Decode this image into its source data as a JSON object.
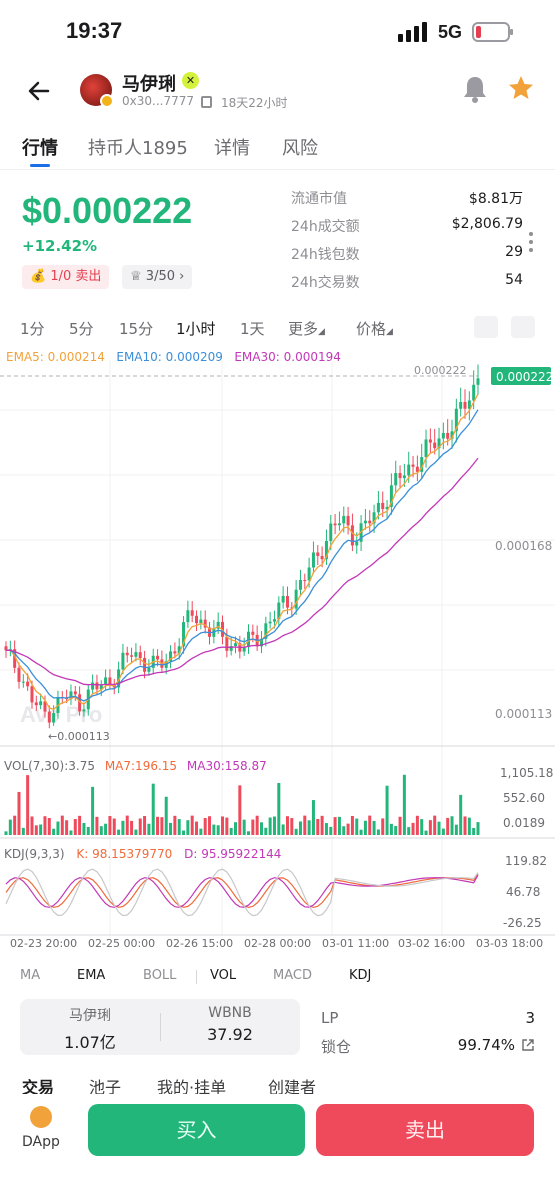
{
  "status_bar": {
    "time": "19:37",
    "network": "5G"
  },
  "header": {
    "token_name": "马伊琍",
    "address": "0x30...7777",
    "age": "18天22小时"
  },
  "tabs": [
    {
      "label": "行情",
      "active": true
    },
    {
      "label": "持币人1895",
      "active": false
    },
    {
      "label": "详情",
      "active": false
    },
    {
      "label": "风险",
      "active": false
    }
  ],
  "price": {
    "value": "$0.000222",
    "change": "+12.42%",
    "sell_pill": "1/0 卖出",
    "crown_pill": "3/50"
  },
  "stats": [
    {
      "label": "流通市值",
      "value": "$8.81万"
    },
    {
      "label": "24h成交额",
      "value": "$2,806.79"
    },
    {
      "label": "24h钱包数",
      "value": "29"
    },
    {
      "label": "24h交易数",
      "value": "54"
    }
  ],
  "intervals": [
    {
      "label": "1分",
      "active": false
    },
    {
      "label": "5分",
      "active": false
    },
    {
      "label": "15分",
      "active": false
    },
    {
      "label": "1小时",
      "active": true
    },
    {
      "label": "1天",
      "active": false
    },
    {
      "label": "更多",
      "active": false
    },
    {
      "label": "价格",
      "active": false
    }
  ],
  "chart": {
    "ema_legend": {
      "ema5": "EMA5: 0.000214",
      "ema10": "EMA10: 0.000209",
      "ema30": "EMA30: 0.000194"
    },
    "price_tag": "0.000222",
    "price_tag_ref": "0.000222",
    "y_labels": [
      "0.000168",
      "0.000113"
    ],
    "low_marker": "0.000113",
    "watermark": "Ave Pro",
    "vol_legend": {
      "vol": "VOL(7,30):3.75",
      "ma7": "MA7:196.15",
      "ma30": "MA30:158.87"
    },
    "vol_labels": [
      "1,105.18",
      "552.60",
      "0.0189"
    ],
    "kdj_legend": {
      "kdj": "KDJ(9,3,3)",
      "k": "K:  98.15379770",
      "d": "D:  95.95922144"
    },
    "kdj_labels": [
      "119.82",
      "46.78",
      "-26.25"
    ],
    "x_labels": [
      "02-23 20:00",
      "02-25 00:00",
      "02-26 15:00",
      "02-28 00:00",
      "03-01 11:00",
      "03-02 16:00",
      "03-03 18:00"
    ],
    "colors": {
      "up": "#22b67a",
      "down": "#ee4a5c",
      "ema5": "#f2a23a",
      "ema10": "#3a8fd8",
      "ema30": "#c238b8"
    }
  },
  "chart_data": {
    "type": "candlestick",
    "interval": "1小时",
    "x_range": [
      "02-23 20:00",
      "03-03 18:00"
    ],
    "price_range_visible": [
      0.000113,
      0.000222
    ],
    "last_price": 0.000222,
    "ema": {
      "ema5": 0.000214,
      "ema10": 0.000209,
      "ema30": 0.000194
    },
    "vol": {
      "last": 3.75,
      "ma7": 196.15,
      "ma30": 158.87,
      "axis": [
        1105.18,
        552.6,
        0.0189
      ]
    },
    "kdj": {
      "k": 98.1537977,
      "d": 95.95922144,
      "axis": [
        119.82,
        46.78,
        -26.25
      ]
    },
    "price_path": [
      0.000132,
      0.000128,
      0.000118,
      0.000113,
      0.000116,
      0.000119,
      0.000117,
      0.000121,
      0.000123,
      0.000127,
      0.000133,
      0.000131,
      0.000128,
      0.000131,
      0.000138,
      0.000146,
      0.000142,
      0.000139,
      0.000136,
      0.000135,
      0.000137,
      0.000142,
      0.000147,
      0.000151,
      0.000157,
      0.000164,
      0.000172,
      0.000176,
      0.000171,
      0.000174,
      0.00018,
      0.000186,
      0.000191,
      0.000195,
      0.000199,
      0.000203,
      0.000207,
      0.000214,
      0.000222
    ]
  },
  "indicator_tabs": [
    {
      "label": "MA",
      "active": false
    },
    {
      "label": "EMA",
      "active": true
    },
    {
      "label": "BOLL",
      "active": false
    },
    {
      "label": "VOL",
      "active": true
    },
    {
      "label": "MACD",
      "active": false
    },
    {
      "label": "KDJ",
      "active": true
    }
  ],
  "pool": {
    "token_a": {
      "name": "马伊琍",
      "amount": "1.07亿"
    },
    "token_b": {
      "name": "WBNB",
      "amount": "37.92"
    },
    "lp_label": "LP",
    "lp_value": "3",
    "lock_label": "锁仓",
    "lock_value": "99.74%"
  },
  "sub_tabs": [
    {
      "label": "交易",
      "active": true
    },
    {
      "label": "池子",
      "active": false
    },
    {
      "label": "我的·挂单",
      "active": false
    },
    {
      "label": "创建者",
      "active": false
    }
  ],
  "bottom": {
    "dapp": "DApp",
    "buy": "买入",
    "sell": "卖出"
  }
}
